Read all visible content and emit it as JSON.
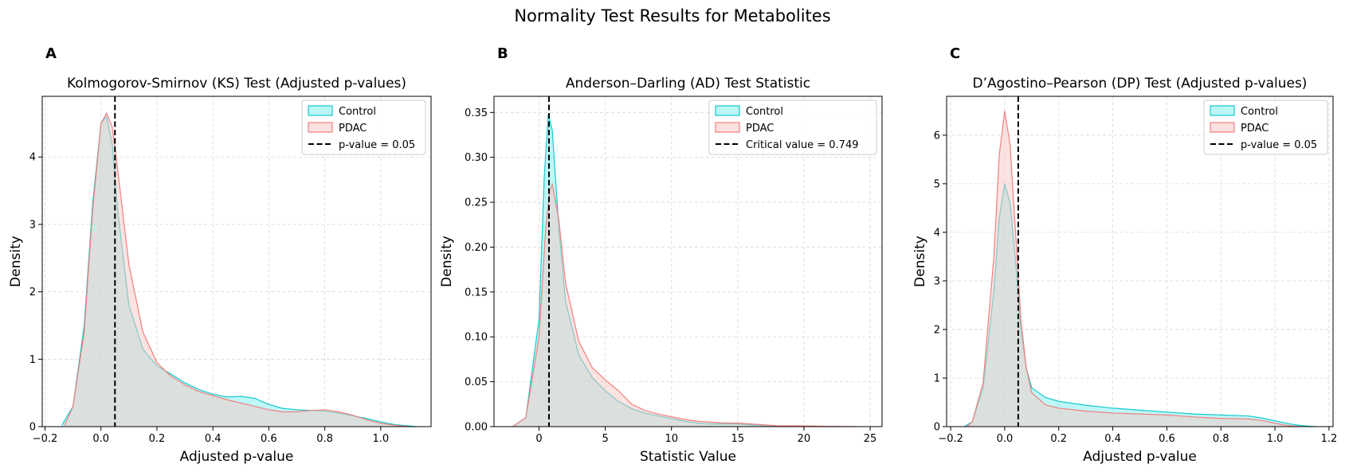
{
  "figure": {
    "suptitle": "Normality Test Results for Metabolites",
    "colors": {
      "control_line": "#17c9cc",
      "control_fill": "#7fefef",
      "pdac_line": "#f08080",
      "pdac_fill": "#f7c7c4",
      "vline": "#000000"
    }
  },
  "chart_data": [
    {
      "type": "area",
      "panel": "A",
      "title": "Kolmogorov-Smirnov (KS) Test (Adjusted p-values)",
      "xlabel": "Adjusted p-value",
      "ylabel": "Density",
      "xlim": [
        -0.21,
        1.18
      ],
      "ylim": [
        0,
        4.9
      ],
      "xticks": [
        -0.2,
        0.0,
        0.2,
        0.4,
        0.6,
        0.8,
        1.0
      ],
      "xticklabels": [
        "−0.2",
        "0.0",
        "0.2",
        "0.4",
        "0.6",
        "0.8",
        "1.0"
      ],
      "yticks": [
        0,
        1,
        2,
        3,
        4
      ],
      "yticklabels": [
        "0",
        "1",
        "2",
        "3",
        "4"
      ],
      "grid": true,
      "legend_position": "upper right",
      "vline": {
        "x": 0.05,
        "label": "p-value = 0.05"
      },
      "series": [
        {
          "name": "Control",
          "x": [
            -0.14,
            -0.1,
            -0.06,
            -0.03,
            0.0,
            0.02,
            0.04,
            0.06,
            0.1,
            0.15,
            0.2,
            0.25,
            0.3,
            0.35,
            0.4,
            0.45,
            0.5,
            0.55,
            0.6,
            0.65,
            0.7,
            0.75,
            0.8,
            0.85,
            0.9,
            0.95,
            1.0,
            1.05,
            1.1,
            1.13
          ],
          "y": [
            0.02,
            0.3,
            1.5,
            3.3,
            4.5,
            4.6,
            4.2,
            3.2,
            1.8,
            1.15,
            0.9,
            0.78,
            0.65,
            0.55,
            0.48,
            0.44,
            0.45,
            0.42,
            0.33,
            0.27,
            0.25,
            0.24,
            0.23,
            0.2,
            0.16,
            0.12,
            0.07,
            0.03,
            0.01,
            0.0
          ]
        },
        {
          "name": "PDAC",
          "x": [
            -0.13,
            -0.1,
            -0.06,
            -0.03,
            0.0,
            0.02,
            0.04,
            0.06,
            0.1,
            0.15,
            0.2,
            0.25,
            0.3,
            0.35,
            0.4,
            0.45,
            0.5,
            0.55,
            0.6,
            0.65,
            0.7,
            0.75,
            0.8,
            0.85,
            0.9,
            0.95,
            1.0,
            1.05,
            1.1
          ],
          "y": [
            0.02,
            0.3,
            1.4,
            3.2,
            4.5,
            4.65,
            4.45,
            3.8,
            2.4,
            1.4,
            0.95,
            0.75,
            0.62,
            0.52,
            0.46,
            0.4,
            0.35,
            0.3,
            0.25,
            0.22,
            0.22,
            0.24,
            0.25,
            0.22,
            0.17,
            0.1,
            0.05,
            0.02,
            0.0
          ]
        }
      ]
    },
    {
      "type": "area",
      "panel": "B",
      "title": "Anderson–Darling (AD) Test Statistic",
      "xlabel": "Statistic Value",
      "ylabel": "Density",
      "xlim": [
        -3.4,
        25.9
      ],
      "ylim": [
        0,
        0.368
      ],
      "xticks": [
        0,
        5,
        10,
        15,
        20,
        25
      ],
      "xticklabels": [
        "0",
        "5",
        "10",
        "15",
        "20",
        "25"
      ],
      "yticks": [
        0.0,
        0.05,
        0.1,
        0.15,
        0.2,
        0.25,
        0.3,
        0.35
      ],
      "yticklabels": [
        "0.00",
        "0.05",
        "0.10",
        "0.15",
        "0.20",
        "0.25",
        "0.30",
        "0.35"
      ],
      "grid": true,
      "legend_position": "upper right",
      "vline": {
        "x": 0.749,
        "label": "Critical value = 0.749"
      },
      "series": [
        {
          "name": "Control",
          "x": [
            -2.0,
            -1.0,
            0.0,
            0.4,
            0.7,
            1.0,
            1.5,
            2.0,
            3.0,
            4.0,
            5.0,
            6.0,
            7.0,
            8.0,
            9.0,
            10.0,
            11.0,
            12.0,
            13.0,
            14.0,
            15.0,
            16.0,
            17.0,
            18.0,
            19.0
          ],
          "y": [
            0.0,
            0.01,
            0.12,
            0.28,
            0.348,
            0.33,
            0.22,
            0.14,
            0.08,
            0.055,
            0.04,
            0.028,
            0.02,
            0.015,
            0.012,
            0.009,
            0.006,
            0.004,
            0.003,
            0.003,
            0.003,
            0.002,
            0.001,
            0.0005,
            0.0
          ]
        },
        {
          "name": "PDAC",
          "x": [
            -2.0,
            -1.0,
            0.0,
            0.5,
            0.8,
            1.0,
            1.5,
            2.0,
            3.0,
            4.0,
            5.0,
            6.0,
            7.0,
            8.0,
            9.0,
            10.0,
            11.0,
            12.0,
            13.0,
            14.0,
            15.0,
            16.0,
            17.0,
            18.0,
            20.0,
            22.0,
            24.0
          ],
          "y": [
            0.0,
            0.01,
            0.1,
            0.22,
            0.262,
            0.27,
            0.23,
            0.16,
            0.095,
            0.066,
            0.052,
            0.04,
            0.025,
            0.018,
            0.014,
            0.011,
            0.008,
            0.006,
            0.005,
            0.004,
            0.004,
            0.003,
            0.002,
            0.001,
            0.0008,
            0.0004,
            0.0
          ]
        }
      ]
    },
    {
      "type": "area",
      "panel": "C",
      "title": "D’Agostino–Pearson (DP) Test (Adjusted p-values)",
      "xlabel": "Adjusted p-value",
      "ylabel": "Density",
      "xlim": [
        -0.215,
        1.215
      ],
      "ylim": [
        0,
        6.8
      ],
      "xticks": [
        -0.2,
        0.0,
        0.2,
        0.4,
        0.6,
        0.8,
        1.0,
        1.2
      ],
      "xticklabels": [
        "−0.2",
        "0.0",
        "0.2",
        "0.4",
        "0.6",
        "0.8",
        "1.0",
        "1.2"
      ],
      "yticks": [
        0,
        1,
        2,
        3,
        4,
        5,
        6
      ],
      "yticklabels": [
        "0",
        "1",
        "2",
        "3",
        "4",
        "5",
        "6"
      ],
      "grid": true,
      "legend_position": "upper right",
      "vline": {
        "x": 0.05,
        "label": "p-value = 0.05"
      },
      "series": [
        {
          "name": "Control",
          "x": [
            -0.15,
            -0.12,
            -0.08,
            -0.04,
            -0.02,
            0.0,
            0.02,
            0.04,
            0.06,
            0.08,
            0.1,
            0.15,
            0.2,
            0.3,
            0.4,
            0.5,
            0.6,
            0.7,
            0.8,
            0.9,
            0.95,
            1.0,
            1.05,
            1.1,
            1.15
          ],
          "y": [
            0.0,
            0.1,
            0.8,
            2.8,
            4.3,
            5.0,
            4.6,
            3.4,
            2.0,
            1.2,
            0.8,
            0.6,
            0.52,
            0.44,
            0.38,
            0.34,
            0.3,
            0.26,
            0.24,
            0.22,
            0.18,
            0.12,
            0.06,
            0.02,
            0.0
          ]
        },
        {
          "name": "PDAC",
          "x": [
            -0.14,
            -0.12,
            -0.08,
            -0.04,
            -0.02,
            0.0,
            0.02,
            0.04,
            0.06,
            0.08,
            0.1,
            0.15,
            0.2,
            0.3,
            0.4,
            0.5,
            0.6,
            0.7,
            0.8,
            0.9,
            0.95,
            1.0,
            1.05,
            1.1
          ],
          "y": [
            0.0,
            0.1,
            0.9,
            3.5,
            5.6,
            6.5,
            5.8,
            4.0,
            2.2,
            1.2,
            0.7,
            0.45,
            0.38,
            0.32,
            0.28,
            0.26,
            0.24,
            0.2,
            0.17,
            0.16,
            0.13,
            0.07,
            0.02,
            0.0
          ]
        }
      ]
    }
  ]
}
